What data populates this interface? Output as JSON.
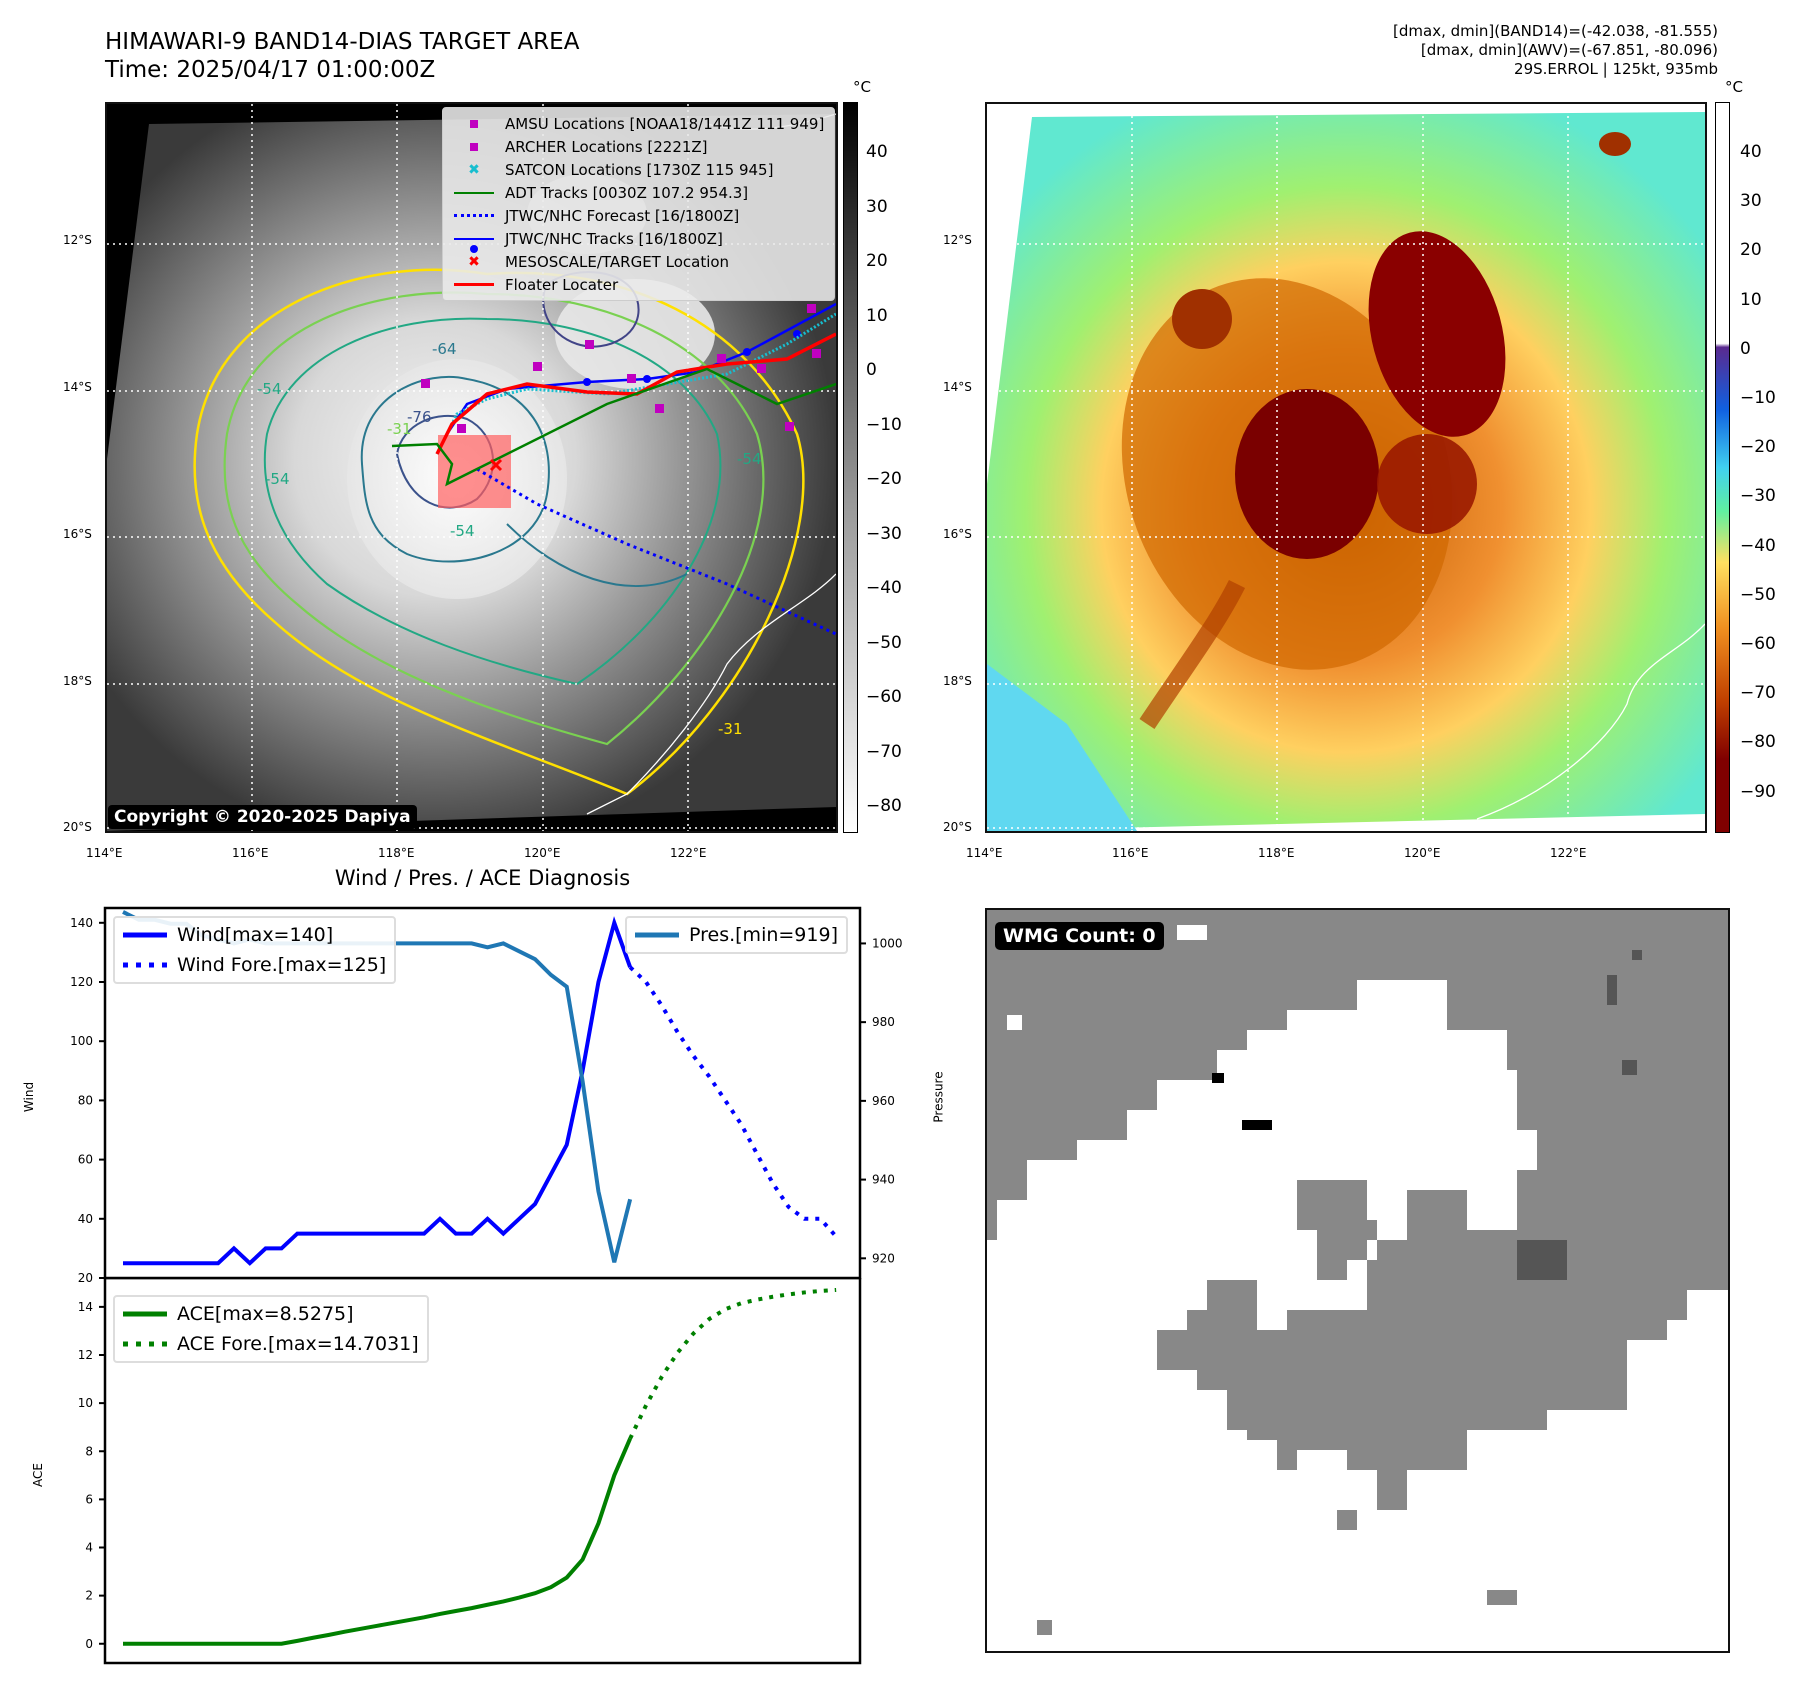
{
  "header": {
    "title_line1": "HIMAWARI-9 BAND14-DIAS TARGET AREA",
    "title_line2": "Time: 2025/04/17 01:00:00Z",
    "info_line1": "[dmax, dmin](BAND14)=(-42.038, -81.555)",
    "info_line2": "[dmax, dmin](AWV)=(-67.851, -80.096)",
    "info_line3": "29S.ERROL | 125kt, 935mb"
  },
  "map_left": {
    "lat_labels": [
      "12°S",
      "14°S",
      "16°S",
      "18°S",
      "20°S"
    ],
    "lon_labels": [
      "114°E",
      "116°E",
      "118°E",
      "120°E",
      "122°E"
    ],
    "copyright": "Copyright © 2020-2025 Dapiya",
    "contour_labels": [
      "-54",
      "-54",
      "-54",
      "-54",
      "-31",
      "-31",
      "-64",
      "-76"
    ],
    "legend": [
      {
        "label": "AMSU Locations [NOAA18/1441Z 111 949]",
        "icon": "magenta-square",
        "color": "#c000c0"
      },
      {
        "label": "ARCHER Locations [2221Z]",
        "icon": "magenta-square",
        "color": "#c000c0"
      },
      {
        "label": "SATCON Locations [1730Z 115 945]",
        "icon": "cyan-x",
        "color": "#17becf"
      },
      {
        "label": "ADT Tracks [0030Z 107.2 954.3]",
        "icon": "green-line",
        "color": "#008000"
      },
      {
        "label": "JTWC/NHC Forecast [16/1800Z]",
        "icon": "blue-dotted-line",
        "color": "#0000ff"
      },
      {
        "label": "JTWC/NHC Tracks [16/1800Z]",
        "icon": "blue-line-dot",
        "color": "#0000ff"
      },
      {
        "label": "MESOSCALE/TARGET Location",
        "icon": "red-x",
        "color": "#ff0000"
      },
      {
        "label": "Floater Locater",
        "icon": "red-line",
        "color": "#ff0000"
      }
    ],
    "colorbar": {
      "unit": "°C",
      "ticks": [
        "40",
        "30",
        "20",
        "10",
        "0",
        "−10",
        "−20",
        "−30",
        "−40",
        "−50",
        "−60",
        "−70",
        "−80"
      ]
    }
  },
  "map_right": {
    "lat_labels": [
      "12°S",
      "14°S",
      "16°S",
      "18°S",
      "20°S"
    ],
    "lon_labels": [
      "114°E",
      "116°E",
      "118°E",
      "120°E",
      "122°E"
    ],
    "colorbar": {
      "unit": "°C",
      "ticks": [
        "40",
        "30",
        "20",
        "10",
        "0",
        "−10",
        "−20",
        "−30",
        "−40",
        "−50",
        "−60",
        "−70",
        "−80",
        "−90"
      ]
    }
  },
  "chart_data": [
    {
      "type": "line",
      "title": "Wind / Pres. / ACE Diagnosis",
      "ylabel": "Wind",
      "y2label": "Pressure",
      "ylim": [
        20,
        145
      ],
      "y2lim": [
        915,
        1009
      ],
      "yticks": [
        "20",
        "40",
        "60",
        "80",
        "100",
        "120",
        "140"
      ],
      "y2ticks": [
        "920",
        "940",
        "960",
        "980",
        "1000"
      ],
      "legend_left": [
        "Wind[max=140]",
        "Wind Fore.[max=125]"
      ],
      "legend_right": [
        "Pres.[min=919]"
      ],
      "series": [
        {
          "name": "Wind",
          "color": "#0000ff",
          "style": "solid",
          "x": [
            0,
            1,
            2,
            3,
            4,
            5,
            6,
            7,
            8,
            9,
            10,
            11,
            12,
            13,
            14,
            15,
            16,
            17,
            18,
            19,
            20,
            21,
            22,
            23,
            24,
            25,
            26,
            27,
            28,
            29,
            30,
            31,
            32
          ],
          "values": [
            25,
            25,
            25,
            25,
            25,
            25,
            25,
            30,
            25,
            30,
            30,
            35,
            35,
            35,
            35,
            35,
            35,
            35,
            35,
            35,
            40,
            35,
            35,
            40,
            35,
            40,
            45,
            55,
            65,
            90,
            120,
            140,
            125
          ]
        },
        {
          "name": "Wind Fore.",
          "color": "#0000ff",
          "style": "dotted",
          "x": [
            32,
            33,
            34,
            35,
            36,
            37,
            38,
            39,
            40,
            41,
            42,
            43,
            44,
            45
          ],
          "values": [
            125,
            120,
            112,
            103,
            95,
            88,
            80,
            72,
            62,
            52,
            44,
            40,
            40,
            34
          ]
        },
        {
          "name": "Pres.",
          "color": "#1f77b4",
          "style": "solid",
          "axis": "right",
          "x": [
            0,
            1,
            2,
            3,
            4,
            5,
            6,
            7,
            8,
            9,
            10,
            11,
            12,
            13,
            14,
            15,
            16,
            17,
            18,
            19,
            20,
            21,
            22,
            23,
            24,
            25,
            26,
            27,
            28,
            29,
            30,
            31,
            32
          ],
          "values": [
            1008,
            1006,
            1006,
            1005,
            1005,
            1002,
            1001,
            1000,
            1001,
            1000,
            1000,
            1000,
            1000,
            1000,
            1000,
            1000,
            1000,
            1000,
            1000,
            1000,
            1000,
            1000,
            1000,
            999,
            1000,
            998,
            996,
            992,
            989,
            965,
            937,
            919,
            935
          ]
        }
      ]
    },
    {
      "type": "line",
      "ylabel": "ACE",
      "ylim": [
        -0.8,
        15.2
      ],
      "yticks": [
        "0",
        "2",
        "4",
        "6",
        "8",
        "10",
        "12",
        "14"
      ],
      "legend": [
        "ACE[max=8.5275]",
        "ACE Fore.[max=14.7031]"
      ],
      "series": [
        {
          "name": "ACE",
          "color": "#008000",
          "style": "solid",
          "x": [
            0,
            1,
            2,
            3,
            4,
            5,
            6,
            7,
            8,
            9,
            10,
            11,
            12,
            13,
            14,
            15,
            16,
            17,
            18,
            19,
            20,
            21,
            22,
            23,
            24,
            25,
            26,
            27,
            28,
            29,
            30,
            31,
            32
          ],
          "values": [
            0,
            0,
            0,
            0,
            0,
            0,
            0,
            0,
            0,
            0,
            0,
            0.12,
            0.25,
            0.37,
            0.5,
            0.62,
            0.74,
            0.86,
            0.98,
            1.1,
            1.24,
            1.36,
            1.48,
            1.62,
            1.76,
            1.92,
            2.1,
            2.35,
            2.75,
            3.5,
            5.0,
            7.0,
            8.5275
          ]
        },
        {
          "name": "ACE Fore.",
          "color": "#008000",
          "style": "dotted",
          "x": [
            32,
            33,
            34,
            35,
            36,
            37,
            38,
            39,
            40,
            41,
            42,
            43,
            44,
            45
          ],
          "values": [
            8.5275,
            9.9,
            11.1,
            12.1,
            12.9,
            13.5,
            13.9,
            14.15,
            14.3,
            14.42,
            14.52,
            14.6,
            14.66,
            14.7031
          ]
        }
      ]
    }
  ],
  "wmg": {
    "label": "WMG Count: 0"
  }
}
